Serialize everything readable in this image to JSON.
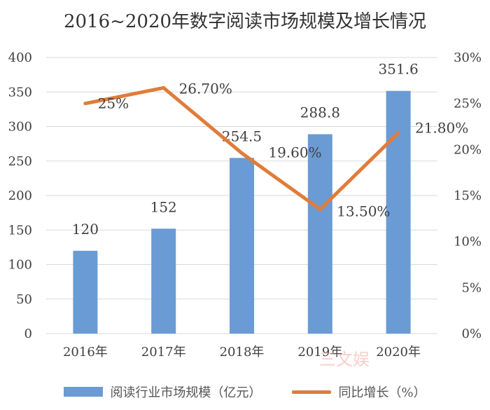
{
  "chart_data": {
    "type": "bar",
    "title": "2016~2020年数字阅读市场规模及增长情况",
    "categories": [
      "2016年",
      "2017年",
      "2018年",
      "2019年",
      "2020年"
    ],
    "series": [
      {
        "name": "阅读行业市场规模（亿元）",
        "type": "bar",
        "axis": "left",
        "values": [
          120,
          152,
          254.5,
          288.8,
          351.6
        ],
        "value_labels": [
          "120",
          "152",
          "254.5",
          "288.8",
          "351.6"
        ]
      },
      {
        "name": "同比增长（%）",
        "type": "line",
        "axis": "right",
        "values": [
          25,
          26.7,
          19.6,
          13.5,
          21.8
        ],
        "value_labels": [
          "25%",
          "26.70%",
          "19.60%",
          "13.50%",
          "21.80%"
        ]
      }
    ],
    "ylim": [
      0,
      400
    ],
    "yticks": [
      "0",
      "50",
      "100",
      "150",
      "200",
      "250",
      "300",
      "350",
      "400"
    ],
    "y2lim": [
      0,
      30
    ],
    "y2ticks": [
      "0%",
      "5%",
      "10%",
      "15%",
      "20%",
      "25%",
      "30%"
    ],
    "grid": true,
    "legend_position": "bottom",
    "colors": {
      "bar": "#6a9bd4",
      "line": "#e07c3a",
      "grid": "#d9d9d9"
    }
  },
  "watermark": "三文娱"
}
